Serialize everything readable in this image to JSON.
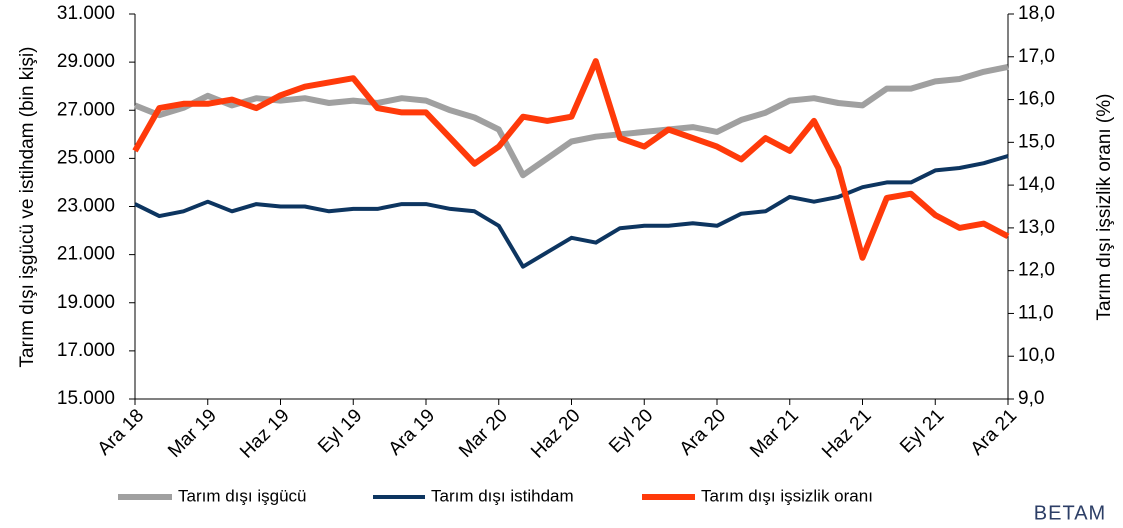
{
  "chart_data": {
    "type": "line",
    "ylabel": "Tarım dışı işgücü ve istihdam (bin kişi)",
    "y2label": "Tarım dışı işsizlik oranı (%)",
    "categories": [
      "Ara 18",
      null,
      null,
      "Mar 19",
      null,
      null,
      "Haz 19",
      null,
      null,
      "Eyl 19",
      null,
      null,
      "Ara 19",
      null,
      null,
      "Mar 20",
      null,
      null,
      "Haz 20",
      null,
      null,
      "Eyl 20",
      null,
      null,
      "Ara 20",
      null,
      null,
      "Mar 21",
      null,
      null,
      "Haz 21",
      null,
      null,
      "Eyl 21",
      null,
      null,
      "Ara 21"
    ],
    "series": [
      {
        "name": "Tarım dışı işgücü",
        "color": "#a0a0a0",
        "values": [
          27200,
          26800,
          27100,
          27600,
          27200,
          27500,
          27400,
          27500,
          27300,
          27400,
          27300,
          27500,
          27400,
          27000,
          26700,
          26200,
          24300,
          25000,
          25700,
          25900,
          26000,
          26100,
          26200,
          26300,
          26100,
          26600,
          26900,
          27400,
          27500,
          27300,
          27200,
          27900,
          27900,
          28200,
          28300,
          28600,
          28800
        ]
      },
      {
        "name": "Tarım dışı istihdam",
        "color": "#0d3560",
        "values": [
          23100,
          22600,
          22800,
          23200,
          22800,
          23100,
          23000,
          23000,
          22800,
          22900,
          22900,
          23100,
          23100,
          22900,
          22800,
          22200,
          20500,
          21100,
          21700,
          21500,
          22100,
          22200,
          22200,
          22300,
          22200,
          22700,
          22800,
          23400,
          23200,
          23400,
          23800,
          24000,
          24000,
          24500,
          24600,
          24800,
          25100
        ]
      },
      {
        "name": "Tarım dışı işsizlik oranı",
        "color": "#ff3a0a",
        "axis": "y2",
        "values": [
          14.8,
          15.8,
          15.9,
          15.9,
          16.0,
          15.8,
          16.1,
          16.3,
          16.4,
          16.5,
          15.8,
          15.7,
          15.7,
          15.1,
          14.5,
          14.9,
          15.6,
          15.5,
          15.6,
          16.9,
          15.1,
          14.9,
          15.3,
          15.1,
          14.9,
          14.6,
          15.1,
          14.8,
          15.5,
          14.4,
          12.3,
          13.7,
          13.8,
          13.3,
          13.0,
          13.1,
          12.8
        ]
      }
    ],
    "ylim": [
      15000,
      31000
    ],
    "yticks": [
      {
        "value": 15000,
        "label": "15.000"
      },
      {
        "value": 17000,
        "label": "17.000"
      },
      {
        "value": 19000,
        "label": "19.000"
      },
      {
        "value": 21000,
        "label": "21.000"
      },
      {
        "value": 23000,
        "label": "23.000"
      },
      {
        "value": 25000,
        "label": "25.000"
      },
      {
        "value": 27000,
        "label": "27.000"
      },
      {
        "value": 29000,
        "label": "29.000"
      },
      {
        "value": 31000,
        "label": "31.000"
      }
    ],
    "y2lim": [
      9,
      18
    ],
    "y2ticks": [
      {
        "value": 9,
        "label": "9,0"
      },
      {
        "value": 10,
        "label": "10,0"
      },
      {
        "value": 11,
        "label": "11,0"
      },
      {
        "value": 12,
        "label": "12,0"
      },
      {
        "value": 13,
        "label": "13,0"
      },
      {
        "value": 14,
        "label": "14,0"
      },
      {
        "value": 15,
        "label": "15,0"
      },
      {
        "value": 16,
        "label": "16,0"
      },
      {
        "value": 17,
        "label": "17,0"
      },
      {
        "value": 18,
        "label": "18,0"
      }
    ],
    "grid": false,
    "legend": "bottom",
    "logo": "BETAM"
  }
}
